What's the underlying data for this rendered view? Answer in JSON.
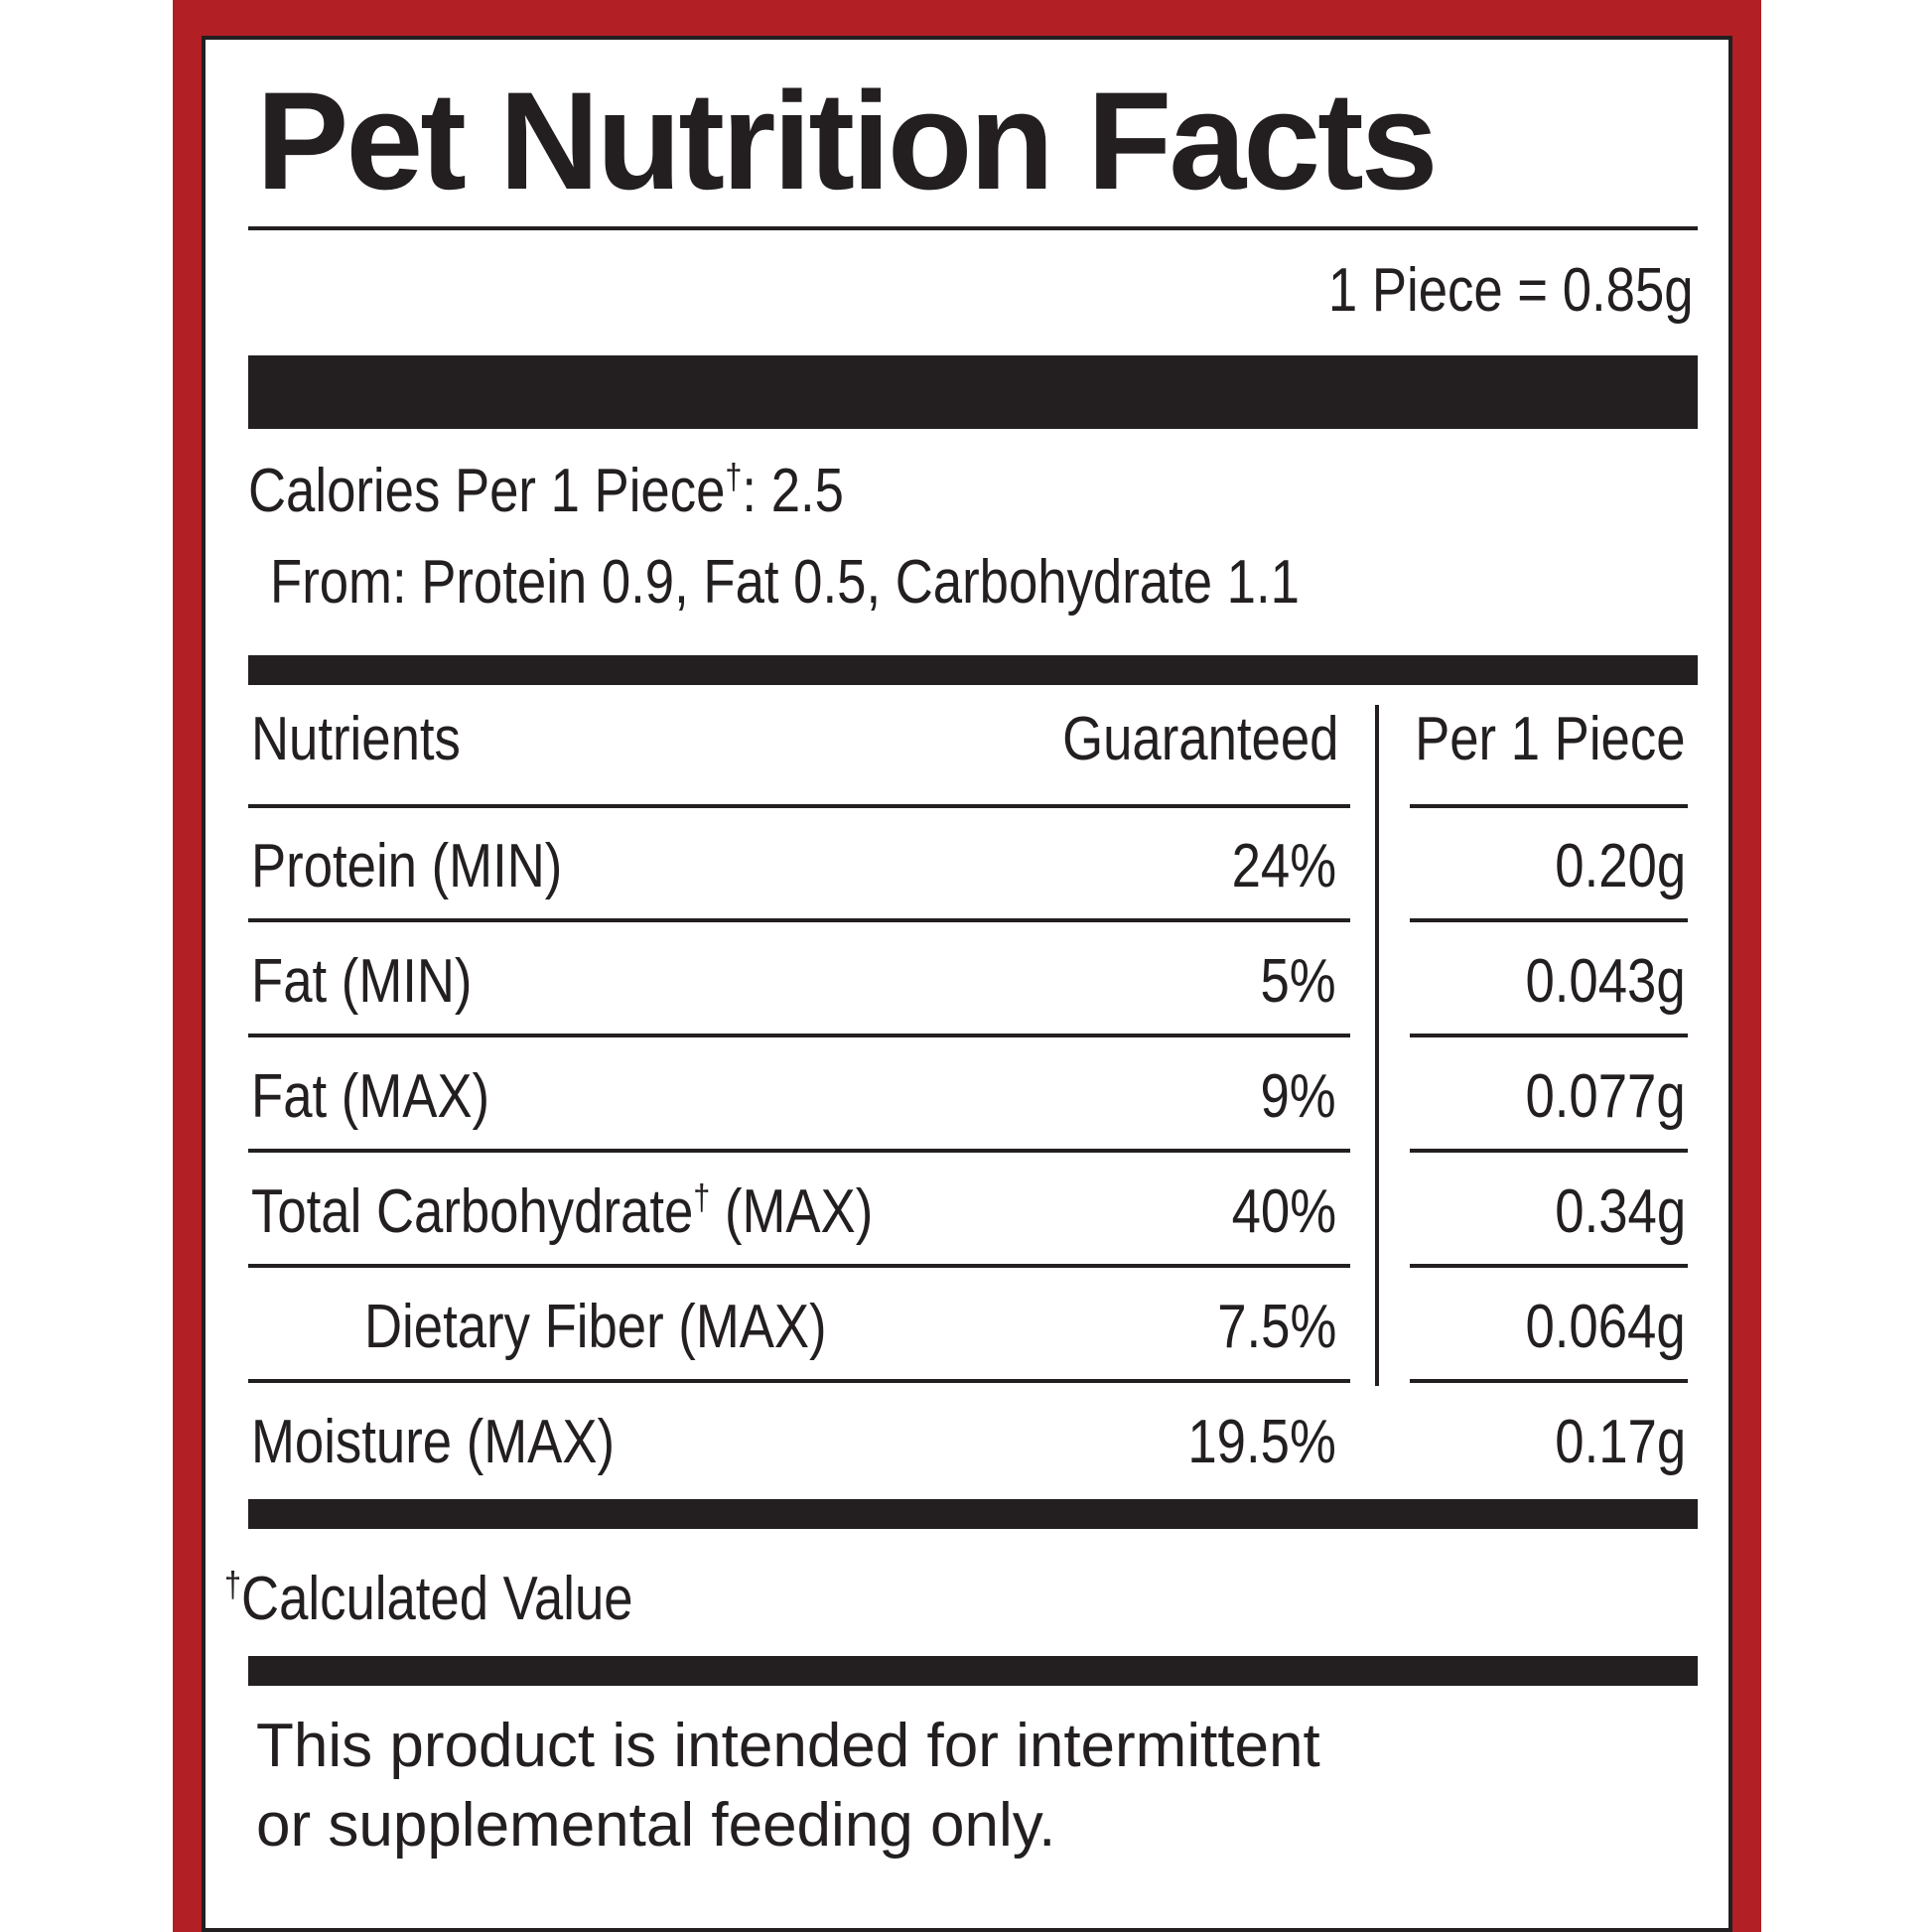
{
  "label": {
    "title": "Pet Nutrition Facts",
    "serving": "1 Piece = 0.85g",
    "calories_label": "Calories Per 1 Piece",
    "calories_value": ": 2.5",
    "dagger": "†",
    "calories_from": "From: Protein 0.9, Fat 0.5, Carbohydrate 1.1",
    "header": {
      "nutrients": "Nutrients",
      "guaranteed": "Guaranteed",
      "per_piece": "Per 1 Piece"
    },
    "rows": [
      {
        "name": "Protein (MIN)",
        "guaranteed": "24%",
        "per_piece": "0.20g"
      },
      {
        "name": "Fat (MIN)",
        "guaranteed": "5%",
        "per_piece": "0.043g"
      },
      {
        "name": "Fat (MAX)",
        "guaranteed": "9%",
        "per_piece": "0.077g"
      },
      {
        "name": "Total Carbohydrate",
        "name_suffix": " (MAX)",
        "guaranteed": "40%",
        "per_piece": "0.34g"
      },
      {
        "name": "Dietary Fiber (MAX)",
        "guaranteed": "7.5%",
        "per_piece": "0.064g"
      },
      {
        "name": "Moisture (MAX)",
        "guaranteed": "19.5%",
        "per_piece": "0.17g"
      }
    ],
    "footnote": "Calculated Value",
    "disclaimer_line1": "This product is intended for intermittent",
    "disclaimer_line2": "or supplemental feeding only."
  },
  "colors": {
    "border": "#b21f24",
    "ink": "#231f20",
    "background": "#ffffff"
  }
}
